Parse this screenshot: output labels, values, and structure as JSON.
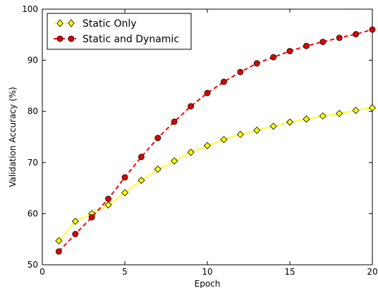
{
  "chart_data": {
    "type": "line",
    "title": "",
    "xlabel": "Epoch",
    "ylabel": "Validation Accuracy (%)",
    "xlim": [
      0,
      20
    ],
    "ylim": [
      50,
      100
    ],
    "x_ticks": [
      "0",
      "5",
      "10",
      "15",
      "20"
    ],
    "y_ticks": [
      "50",
      "60",
      "70",
      "80",
      "90",
      "100"
    ],
    "grid": false,
    "legend_position": "top-left",
    "x": [
      1,
      2,
      3,
      4,
      5,
      6,
      7,
      8,
      9,
      10,
      11,
      12,
      13,
      14,
      15,
      16,
      17,
      18,
      19,
      20
    ],
    "series": [
      {
        "name": "Static Only",
        "line_color": "#ffff33",
        "marker": "diamond",
        "marker_color": "#ffff00",
        "line_style": "solid",
        "values": [
          54.7,
          58.5,
          60.0,
          61.7,
          64.1,
          66.5,
          68.7,
          70.3,
          72.0,
          73.3,
          74.5,
          75.5,
          76.3,
          77.1,
          77.9,
          78.5,
          79.1,
          79.6,
          80.2,
          80.7
        ]
      },
      {
        "name": "Static and Dynamic",
        "line_color": "#ff0000",
        "marker": "circle",
        "marker_color": "#dd0000",
        "line_style": "dashed",
        "values": [
          52.6,
          56.0,
          59.3,
          62.9,
          67.1,
          71.1,
          74.8,
          78.0,
          81.0,
          83.6,
          85.8,
          87.7,
          89.4,
          90.6,
          91.8,
          92.8,
          93.6,
          94.4,
          95.1,
          96.0
        ]
      }
    ]
  }
}
